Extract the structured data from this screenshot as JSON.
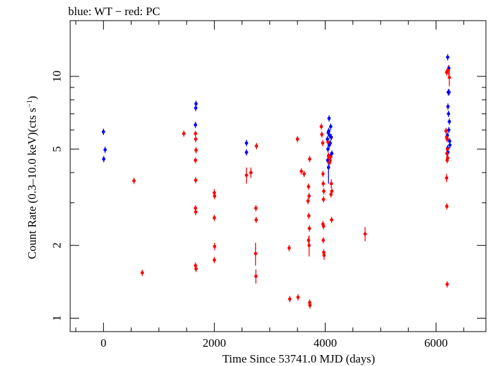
{
  "chart_data": {
    "type": "scatter",
    "title": "blue: WT − red: PC",
    "xlabel": "Time Since 53741.0 MJD (days)",
    "ylabel_main": "Count Rate (0.3–10.0 keV)(cts s",
    "ylabel_sup": "−1",
    "ylabel_close": ")",
    "xscale": "linear",
    "yscale": "log",
    "xlim": [
      -600,
      6900
    ],
    "ylim": [
      0.88,
      17.0
    ],
    "x_major_ticks": [
      0,
      2000,
      4000,
      6000
    ],
    "x_tick_labels": [
      "0",
      "2000",
      "4000",
      "6000"
    ],
    "x_minor_step": 500,
    "y_labeled_ticks": [
      1,
      2,
      5,
      10
    ],
    "y_tick_labels": [
      "1",
      "2",
      "5",
      "10"
    ],
    "y_minor_ticks": [
      3,
      4,
      6,
      7,
      8,
      9
    ],
    "grid": false,
    "legend": "none",
    "series": [
      {
        "color": "#0000ff",
        "points": [
          {
            "x": 0,
            "y": 5.9
          },
          {
            "x": 30,
            "y": 4.97
          },
          {
            "x": 5,
            "y": 4.55
          },
          {
            "x": 1670,
            "y": 7.7
          },
          {
            "x": 1665,
            "y": 7.4
          },
          {
            "x": 1660,
            "y": 6.3
          },
          {
            "x": 2580,
            "y": 5.3
          },
          {
            "x": 2580,
            "y": 4.85
          },
          {
            "x": 4040,
            "y": 5.5
          },
          {
            "x": 4050,
            "y": 5.0
          },
          {
            "x": 4060,
            "y": 4.2,
            "yerr": 0.6
          },
          {
            "x": 4070,
            "y": 6.7
          },
          {
            "x": 4080,
            "y": 5.7
          },
          {
            "x": 4090,
            "y": 5.3
          },
          {
            "x": 4100,
            "y": 6.2
          },
          {
            "x": 4110,
            "y": 5.6
          },
          {
            "x": 4120,
            "y": 4.8
          },
          {
            "x": 4055,
            "y": 5.85
          },
          {
            "x": 4075,
            "y": 5.2
          },
          {
            "x": 4095,
            "y": 4.7
          },
          {
            "x": 4045,
            "y": 4.5
          },
          {
            "x": 4065,
            "y": 5.95
          },
          {
            "x": 6210,
            "y": 12.0
          },
          {
            "x": 6230,
            "y": 10.8
          },
          {
            "x": 6220,
            "y": 8.6
          },
          {
            "x": 6235,
            "y": 8.6
          },
          {
            "x": 6215,
            "y": 7.5
          },
          {
            "x": 6225,
            "y": 7.0
          },
          {
            "x": 6240,
            "y": 6.5
          },
          {
            "x": 6230,
            "y": 6.0
          },
          {
            "x": 6205,
            "y": 5.7
          },
          {
            "x": 6245,
            "y": 5.4
          },
          {
            "x": 6250,
            "y": 5.2
          },
          {
            "x": 6210,
            "y": 5.05
          },
          {
            "x": 6215,
            "y": 4.85
          }
        ]
      },
      {
        "color": "#ff0000",
        "points": [
          {
            "x": 550,
            "y": 3.7
          },
          {
            "x": 700,
            "y": 1.54
          },
          {
            "x": 1450,
            "y": 5.8
          },
          {
            "x": 1660,
            "y": 5.8,
            "yerr": 0.15
          },
          {
            "x": 1665,
            "y": 5.5
          },
          {
            "x": 1670,
            "y": 4.95
          },
          {
            "x": 1660,
            "y": 4.5
          },
          {
            "x": 1665,
            "y": 3.72
          },
          {
            "x": 1660,
            "y": 2.85
          },
          {
            "x": 1665,
            "y": 2.75
          },
          {
            "x": 1660,
            "y": 1.65
          },
          {
            "x": 1670,
            "y": 1.6
          },
          {
            "x": 2000,
            "y": 3.3,
            "yerr": 0.12
          },
          {
            "x": 2005,
            "y": 3.2
          },
          {
            "x": 2000,
            "y": 2.6
          },
          {
            "x": 2005,
            "y": 1.98,
            "yerr": 0.07
          },
          {
            "x": 2000,
            "y": 1.74
          },
          {
            "x": 2580,
            "y": 3.9,
            "yerr": 0.3
          },
          {
            "x": 2660,
            "y": 4.0,
            "yerr": 0.2
          },
          {
            "x": 2760,
            "y": 5.15
          },
          {
            "x": 2750,
            "y": 2.85
          },
          {
            "x": 2755,
            "y": 2.55
          },
          {
            "x": 2745,
            "y": 1.85,
            "yerr": 0.2
          },
          {
            "x": 2750,
            "y": 1.49,
            "yerr": 0.1
          },
          {
            "x": 3350,
            "y": 1.95
          },
          {
            "x": 3360,
            "y": 1.2
          },
          {
            "x": 3500,
            "y": 5.5
          },
          {
            "x": 3510,
            "y": 1.22
          },
          {
            "x": 3570,
            "y": 4.05
          },
          {
            "x": 3620,
            "y": 3.95
          },
          {
            "x": 3720,
            "y": 4.55
          },
          {
            "x": 3700,
            "y": 3.5
          },
          {
            "x": 3710,
            "y": 3.2
          },
          {
            "x": 3690,
            "y": 3.05
          },
          {
            "x": 3705,
            "y": 2.65
          },
          {
            "x": 3715,
            "y": 2.35
          },
          {
            "x": 3700,
            "y": 2.1
          },
          {
            "x": 3710,
            "y": 2.0,
            "yerr": 0.2
          },
          {
            "x": 3720,
            "y": 1.16
          },
          {
            "x": 3725,
            "y": 1.13
          },
          {
            "x": 3930,
            "y": 6.2
          },
          {
            "x": 3940,
            "y": 5.75
          },
          {
            "x": 3955,
            "y": 5.3
          },
          {
            "x": 3960,
            "y": 3.95
          },
          {
            "x": 3965,
            "y": 3.6
          },
          {
            "x": 3975,
            "y": 3.35
          },
          {
            "x": 3970,
            "y": 3.1
          },
          {
            "x": 3960,
            "y": 2.45
          },
          {
            "x": 3970,
            "y": 2.4
          },
          {
            "x": 3965,
            "y": 2.1
          },
          {
            "x": 3975,
            "y": 1.87
          },
          {
            "x": 3980,
            "y": 1.82,
            "yerr": 0.08
          },
          {
            "x": 4050,
            "y": 5.35
          },
          {
            "x": 4060,
            "y": 4.7
          },
          {
            "x": 4070,
            "y": 4.6
          },
          {
            "x": 4080,
            "y": 4.4
          },
          {
            "x": 4090,
            "y": 4.5
          },
          {
            "x": 4100,
            "y": 4.65
          },
          {
            "x": 4110,
            "y": 3.6,
            "yerr": 0.15
          },
          {
            "x": 4120,
            "y": 3.35
          },
          {
            "x": 4105,
            "y": 3.25
          },
          {
            "x": 4115,
            "y": 2.55
          },
          {
            "x": 4720,
            "y": 2.23,
            "yerr": 0.15
          },
          {
            "x": 6190,
            "y": 10.4
          },
          {
            "x": 6220,
            "y": 10.6,
            "yerr": 0.5
          },
          {
            "x": 6240,
            "y": 9.9,
            "yerr": 0.8
          },
          {
            "x": 6180,
            "y": 5.95
          },
          {
            "x": 6190,
            "y": 5.6
          },
          {
            "x": 6200,
            "y": 5.5
          },
          {
            "x": 6205,
            "y": 5.0
          },
          {
            "x": 6195,
            "y": 4.8
          },
          {
            "x": 6210,
            "y": 4.6
          },
          {
            "x": 6200,
            "y": 4.5
          },
          {
            "x": 6190,
            "y": 3.8,
            "yerr": 0.15
          },
          {
            "x": 6195,
            "y": 2.9
          },
          {
            "x": 6200,
            "y": 1.38
          }
        ]
      }
    ]
  }
}
